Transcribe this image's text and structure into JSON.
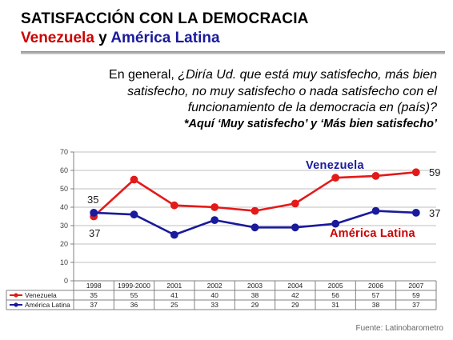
{
  "slide": {
    "title": "SATISFACCIÓN CON LA DEMOCRACIA",
    "subtitle_venezuela": "Venezuela",
    "subtitle_and": " y ",
    "subtitle_latam": "América Latina",
    "question_lead": "En general, ",
    "question_body": "¿Diría Ud. que está muy satisfecho, más bien satisfecho, no muy satisfecho o nada satisfecho con el funcionamiento de la democracia en (país)?",
    "question_note": "*Aquí ‘Muy satisfecho’ y ‘Más bien satisfecho’",
    "source": "Fuente: Latinobarometro"
  },
  "colors": {
    "venezuela": "#e31a1a",
    "venezuela_dark": "#cc0000",
    "latam": "#1a1a9c",
    "grid": "#bfbfbf"
  },
  "chart_data": {
    "type": "line",
    "categories": [
      "1998",
      "1999-2000",
      "2001",
      "2002",
      "2003",
      "2004",
      "2005",
      "2006",
      "2007"
    ],
    "series": [
      {
        "name": "Venezuela",
        "values": [
          35,
          55,
          41,
          40,
          38,
          42,
          56,
          57,
          59
        ]
      },
      {
        "name": "América Latina",
        "values": [
          37,
          36,
          25,
          33,
          29,
          29,
          31,
          38,
          37
        ]
      }
    ],
    "ylim": [
      0,
      70
    ],
    "yticks": [
      "0",
      "10",
      "20",
      "30",
      "40",
      "50",
      "60",
      "70"
    ],
    "grid": true,
    "data_table": true,
    "annotations": {
      "venezuela_label": "Venezuela",
      "latam_label": "América Latina",
      "ven_first": "35",
      "latam_first": "37",
      "ven_last": "59",
      "latam_last": "37"
    }
  }
}
